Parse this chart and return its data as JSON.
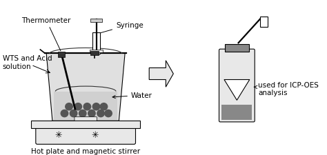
{
  "bg_color": "#ffffff",
  "fig_width": 4.74,
  "fig_height": 2.26,
  "dpi": 100,
  "labels": {
    "thermometer": "Thermometer",
    "syringe": "Syringe",
    "wts": "WTS and Acid\nsolution",
    "water": "Water",
    "hotplate": "Hot plate and magnetic stirrer",
    "icp": "used for ICP-OES\nanalysis"
  },
  "colors": {
    "black": "#000000",
    "dark_gray": "#333333",
    "light_gray": "#cccccc",
    "medium_gray": "#888888",
    "very_light_gray": "#e8e8e8",
    "beaker_fill": "#e0e0e0",
    "water_fill": "#d0d0d0",
    "balls": "#555555",
    "hotplate_body": "#222222",
    "vial_fill": "#b0b0b0"
  }
}
